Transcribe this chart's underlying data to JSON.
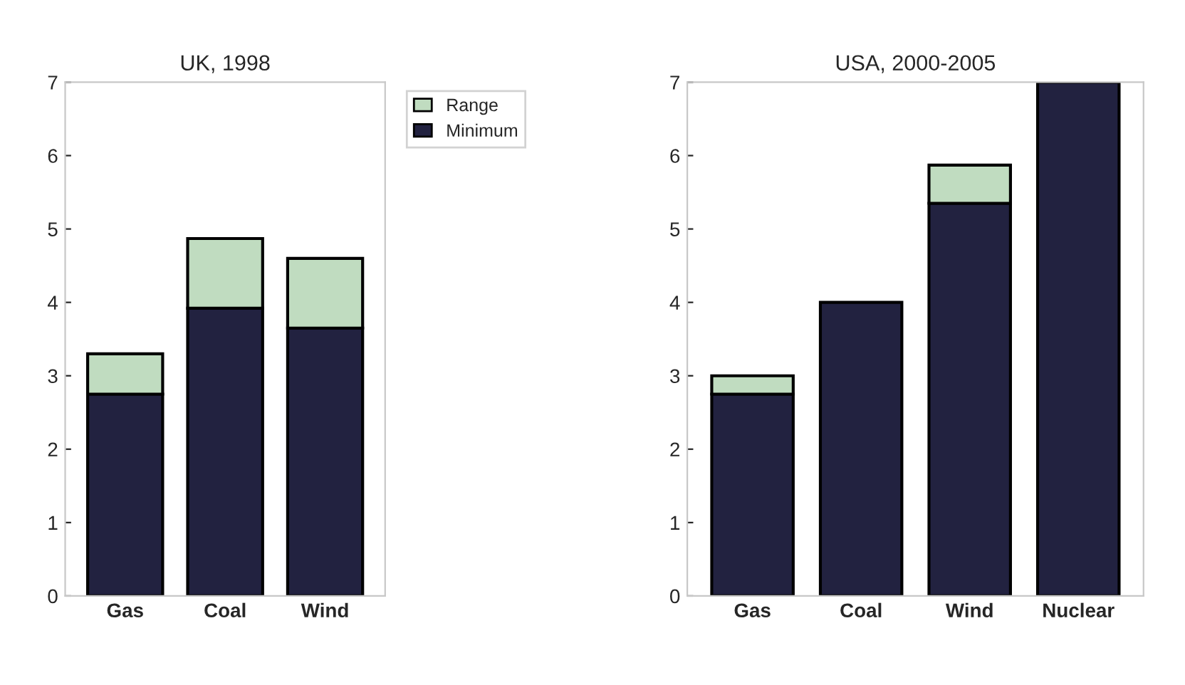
{
  "chart_data": [
    {
      "type": "bar",
      "title": "UK, 1998",
      "categories": [
        "Gas",
        "Coal",
        "Wind"
      ],
      "stacked": true,
      "legend": "right",
      "ylim": [
        0,
        7
      ],
      "yticks": [
        0,
        1,
        2,
        3,
        4,
        5,
        6,
        7
      ],
      "series": [
        {
          "name": "Minimum",
          "color": "#222240",
          "values": [
            2.75,
            3.92,
            3.65
          ]
        },
        {
          "name": "Range",
          "color": "#c0dcc0",
          "values": [
            0.55,
            0.95,
            0.95
          ]
        }
      ]
    },
    {
      "type": "bar",
      "title": "USA, 2000-2005",
      "categories": [
        "Gas",
        "Coal",
        "Wind",
        "Nuclear"
      ],
      "stacked": true,
      "ylim": [
        0,
        7
      ],
      "yticks": [
        0,
        1,
        2,
        3,
        4,
        5,
        6,
        7
      ],
      "series": [
        {
          "color": "#222240",
          "values": [
            2.75,
            4.0,
            5.35,
            7.0
          ]
        },
        {
          "color": "#c0dcc0",
          "values": [
            0.25,
            null,
            0.52,
            null
          ]
        }
      ]
    }
  ]
}
